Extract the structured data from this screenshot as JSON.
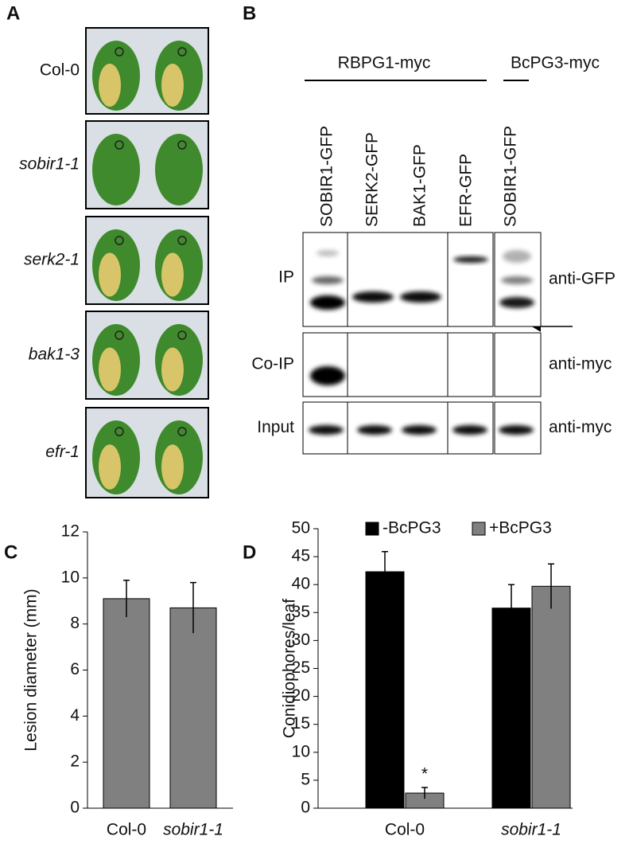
{
  "panel_a": {
    "letter": "A",
    "genotypes": [
      "Col-0",
      "sobir1-1",
      "serk2-1",
      "bak1-3",
      "efr-1"
    ]
  },
  "panel_b": {
    "letter": "B",
    "groups": [
      "RBPG1-myc",
      "BcPG3-myc"
    ],
    "lanes": [
      "SOBIR1-GFP",
      "SERK2-GFP",
      "BAK1-GFP",
      "EFR-GFP",
      "SOBIR1-GFP"
    ],
    "rows": [
      "IP",
      "Co-IP",
      "Input"
    ],
    "antibodies": [
      "anti-GFP",
      "anti-myc",
      "anti-myc"
    ]
  },
  "chart_data": [
    {
      "type": "bar",
      "letter": "C",
      "ylabel": "Lesion diameter (mm)",
      "categories": [
        "Col-0",
        "sobir1-1"
      ],
      "series": [
        {
          "color": "#808080",
          "values": [
            9.1,
            8.7
          ],
          "errors": [
            0.8,
            1.1
          ]
        }
      ],
      "ylim": [
        0,
        12
      ],
      "yticks": [
        0,
        2,
        4,
        6,
        8,
        10,
        12
      ]
    },
    {
      "type": "bar",
      "letter": "D",
      "ylabel": "Conidiophores/leaf",
      "categories": [
        "Col-0",
        "sobir1-1"
      ],
      "series": [
        {
          "name": "-BcPG3",
          "color": "#000000",
          "values": [
            42.3,
            35.8
          ],
          "errors": [
            3.6,
            4.2
          ]
        },
        {
          "name": "+BcPG3",
          "color": "#808080",
          "values": [
            2.7,
            39.7
          ],
          "errors": [
            1.0,
            4.0
          ]
        }
      ],
      "ylim": [
        0,
        50
      ],
      "yticks": [
        0,
        5,
        10,
        15,
        20,
        25,
        30,
        35,
        40,
        45,
        50
      ],
      "annotation": "*"
    }
  ]
}
